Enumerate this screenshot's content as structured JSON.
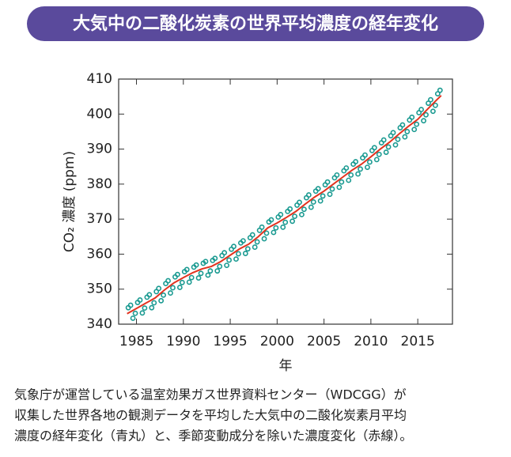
{
  "chart_data": {
    "type": "line-scatter",
    "title": "大気中の二酸化炭素の世界平均濃度の経年変化",
    "y_label": "CO₂ 濃度 (ppm)",
    "x_label": "年",
    "xlim": [
      1983.1,
      2018.7
    ],
    "xticks": [
      1985,
      1990,
      1995,
      2000,
      2005,
      2010,
      2015
    ],
    "ylim": [
      340,
      410
    ],
    "yticks": [
      340,
      350,
      360,
      370,
      380,
      390,
      400,
      410
    ],
    "series": [
      {
        "style": "circles",
        "color": "#1a9a91",
        "x": [
          1984.125,
          1984.375,
          1984.625,
          1984.875,
          1985.125,
          1985.375,
          1985.625,
          1985.875,
          1986.125,
          1986.375,
          1986.625,
          1986.875,
          1987.125,
          1987.375,
          1987.625,
          1987.875,
          1988.125,
          1988.375,
          1988.625,
          1988.875,
          1989.125,
          1989.375,
          1989.625,
          1989.875,
          1990.125,
          1990.375,
          1990.625,
          1990.875,
          1991.125,
          1991.375,
          1991.625,
          1991.875,
          1992.125,
          1992.375,
          1992.625,
          1992.875,
          1993.125,
          1993.375,
          1993.625,
          1993.875,
          1994.125,
          1994.375,
          1994.625,
          1994.875,
          1995.125,
          1995.375,
          1995.625,
          1995.875,
          1996.125,
          1996.375,
          1996.625,
          1996.875,
          1997.125,
          1997.375,
          1997.625,
          1997.875,
          1998.125,
          1998.375,
          1998.625,
          1998.875,
          1999.125,
          1999.375,
          1999.625,
          1999.875,
          2000.125,
          2000.375,
          2000.625,
          2000.875,
          2001.125,
          2001.375,
          2001.625,
          2001.875,
          2002.125,
          2002.375,
          2002.625,
          2002.875,
          2003.125,
          2003.375,
          2003.625,
          2003.875,
          2004.125,
          2004.375,
          2004.625,
          2004.875,
          2005.125,
          2005.375,
          2005.625,
          2005.875,
          2006.125,
          2006.375,
          2006.625,
          2006.875,
          2007.125,
          2007.375,
          2007.625,
          2007.875,
          2008.125,
          2008.375,
          2008.625,
          2008.875,
          2009.125,
          2009.375,
          2009.625,
          2009.875,
          2010.125,
          2010.375,
          2010.625,
          2010.875,
          2011.125,
          2011.375,
          2011.625,
          2011.875,
          2012.125,
          2012.375,
          2012.625,
          2012.875,
          2013.125,
          2013.375,
          2013.625,
          2013.875,
          2014.125,
          2014.375,
          2014.625,
          2014.875,
          2015.125,
          2015.375,
          2015.625,
          2015.875,
          2016.125,
          2016.375,
          2016.625,
          2016.875,
          2017.125,
          2017.375
        ],
        "values": [
          344.7,
          345.4,
          341.7,
          343.1,
          346.2,
          346.9,
          343.2,
          344.6,
          347.7,
          348.4,
          344.7,
          346.1,
          349.3,
          350.2,
          346.7,
          348.3,
          351.6,
          352.4,
          348.9,
          350.4,
          353.5,
          354.2,
          350.5,
          351.9,
          355.0,
          355.6,
          352.0,
          353.3,
          356.3,
          356.9,
          353.2,
          354.5,
          357.4,
          357.9,
          354.0,
          355.2,
          358.2,
          358.8,
          355.2,
          356.5,
          359.6,
          360.4,
          356.8,
          358.3,
          361.4,
          362.2,
          358.6,
          360.1,
          363.2,
          363.8,
          360.2,
          361.5,
          364.7,
          365.5,
          362.0,
          363.5,
          366.8,
          367.7,
          364.4,
          366.0,
          369.2,
          369.8,
          366.2,
          367.5,
          370.6,
          371.3,
          367.7,
          369.1,
          372.2,
          372.9,
          369.4,
          370.8,
          374.0,
          374.8,
          371.3,
          372.8,
          376.1,
          376.9,
          373.4,
          374.9,
          378.0,
          378.7,
          375.2,
          376.6,
          379.8,
          380.6,
          377.1,
          378.6,
          381.8,
          382.6,
          379.1,
          380.6,
          383.8,
          384.6,
          381.1,
          382.6,
          385.7,
          386.4,
          382.9,
          384.3,
          387.5,
          388.3,
          384.8,
          386.3,
          389.6,
          390.4,
          387.0,
          388.5,
          391.8,
          392.6,
          389.1,
          390.6,
          393.8,
          394.7,
          391.2,
          392.8,
          396.1,
          396.9,
          393.5,
          395.0,
          398.3,
          399.1,
          395.6,
          397.1,
          400.4,
          401.3,
          398.1,
          399.8,
          403.1,
          404.1,
          400.8,
          402.5,
          405.8,
          406.8
        ]
      },
      {
        "style": "line",
        "color": "#e2321f",
        "x": [
          1984,
          1985,
          1986,
          1987,
          1988,
          1989,
          1990,
          1991,
          1992,
          1993,
          1994,
          1995,
          1996,
          1997,
          1998,
          1999,
          2000,
          2001,
          2002,
          2003,
          2004,
          2005,
          2006,
          2007,
          2008,
          2009,
          2010,
          2011,
          2012,
          2013,
          2014,
          2015,
          2016,
          2017,
          2017.5
        ],
        "values": [
          343.0,
          344.5,
          346.0,
          347.5,
          349.8,
          351.8,
          353.3,
          354.7,
          355.8,
          356.5,
          357.9,
          359.7,
          361.5,
          362.9,
          365.0,
          367.5,
          368.9,
          370.5,
          372.2,
          374.3,
          376.3,
          378.0,
          380.0,
          382.0,
          384.0,
          385.7,
          387.8,
          390.0,
          392.0,
          394.3,
          396.5,
          398.5,
          401.3,
          404.0,
          405.3
        ]
      }
    ],
    "title_color": "#5a4a9c",
    "caption": [
      "気象庁が運営している温室効果ガス世界資料センター（WDCGG）が",
      "収集した世界各地の観測データを平均した大気中の二酸化炭素月平均",
      "濃度の経年変化（青丸）と、季節変動成分を除いた濃度変化（赤線）。"
    ]
  }
}
